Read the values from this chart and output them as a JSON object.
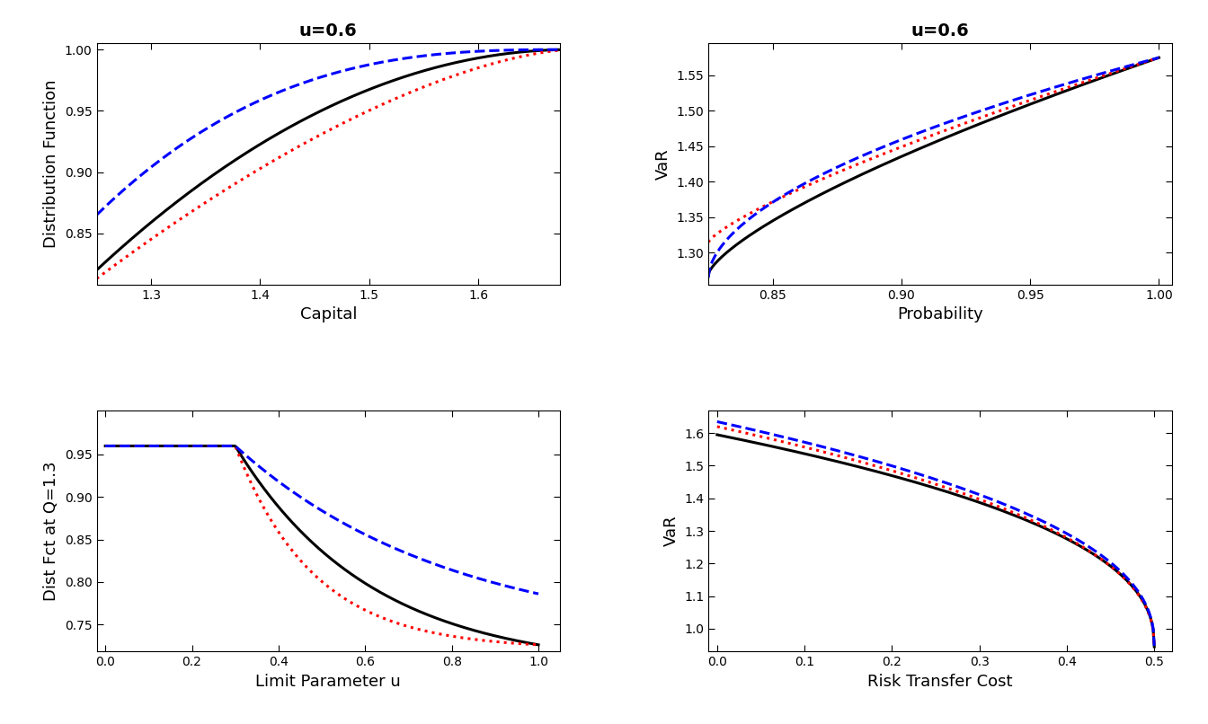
{
  "title_ul": "u=0.6",
  "title_ur": "u=0.6",
  "xlabel_ul": "Capital",
  "ylabel_ul": "Distribution Function",
  "xlabel_ur": "Probability",
  "ylabel_ur": "VaR",
  "xlabel_ll": "Limit Parameter u",
  "ylabel_ll": "Dist Fct at Q=1.3",
  "xlabel_lr": "Risk Transfer Cost",
  "ylabel_lr": "VaR",
  "black_color": "#000000",
  "red_color": "#FF0000",
  "blue_color": "#0000FF",
  "bg_color": "#FFFFFF",
  "linewidth": 2.2,
  "ul_xlim": [
    1.25,
    1.675
  ],
  "ul_ylim": [
    0.808,
    1.005
  ],
  "ul_xticks": [
    1.3,
    1.4,
    1.5,
    1.6
  ],
  "ul_yticks": [
    0.85,
    0.9,
    0.95,
    1.0
  ],
  "ur_xlim": [
    0.825,
    1.005
  ],
  "ur_ylim": [
    1.255,
    1.595
  ],
  "ur_xticks": [
    0.85,
    0.9,
    0.95,
    1.0
  ],
  "ur_yticks": [
    1.3,
    1.35,
    1.4,
    1.45,
    1.5,
    1.55
  ],
  "ll_xlim": [
    -0.02,
    1.05
  ],
  "ll_ylim": [
    0.718,
    1.002
  ],
  "ll_xticks": [
    0.0,
    0.2,
    0.4,
    0.6,
    0.8,
    1.0
  ],
  "ll_yticks": [
    0.75,
    0.8,
    0.85,
    0.9,
    0.95
  ],
  "lr_xlim": [
    -0.01,
    0.52
  ],
  "lr_ylim": [
    0.93,
    1.67
  ],
  "lr_xticks": [
    0.0,
    0.1,
    0.2,
    0.3,
    0.4,
    0.5
  ],
  "lr_yticks": [
    1.0,
    1.1,
    1.2,
    1.3,
    1.4,
    1.5,
    1.6
  ]
}
